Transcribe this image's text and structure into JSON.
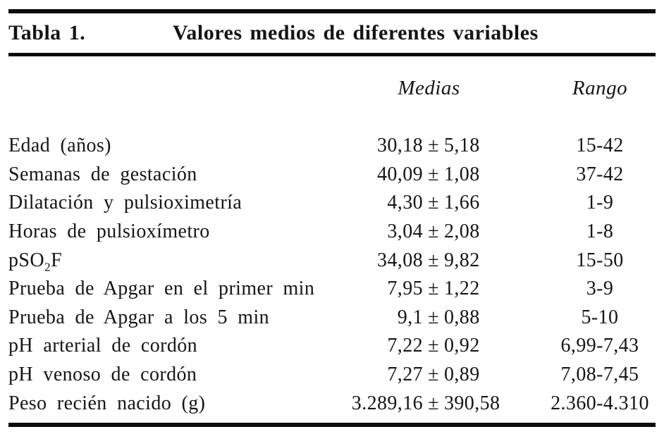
{
  "table": {
    "label": "Tabla 1.",
    "title": "Valores medios de diferentes variables",
    "columns": {
      "medias": "Medias",
      "rango": "Rango"
    },
    "rows": [
      {
        "label": "Edad (años)",
        "mean": "30,18",
        "pm": "±",
        "sd": "5,18",
        "range": "15-42"
      },
      {
        "label": "Semanas de gestación",
        "mean": "40,09",
        "pm": "±",
        "sd": "1,08",
        "range": "37-42"
      },
      {
        "label": "Dilatación y pulsioximetría",
        "mean": "4,30",
        "pm": "±",
        "sd": "1,66",
        "range": "1-9"
      },
      {
        "label": "Horas de pulsioxímetro",
        "mean": "3,04",
        "pm": "±",
        "sd": "2,08",
        "range": "1-8"
      },
      {
        "label_parts": {
          "base": "pSO",
          "sub": "2",
          "post": "F"
        },
        "mean": "34,08",
        "pm": "±",
        "sd": "9,82",
        "range": "15-50"
      },
      {
        "label": "Prueba de Apgar en el primer min",
        "mean": "7,95",
        "pm": "±",
        "sd": "1,22",
        "range": "3-9"
      },
      {
        "label": "Prueba de Apgar a los 5 min",
        "mean": "9,1",
        "pm": "±",
        "sd": "0,88",
        "range": "5-10"
      },
      {
        "label": "pH arterial de cordón",
        "mean": "7,22",
        "pm": "±",
        "sd": "0,92",
        "range": "6,99-7,43"
      },
      {
        "label": "pH venoso de cordón",
        "mean": "7,27",
        "pm": "±",
        "sd": "0,89",
        "range": "7,08-7,45"
      },
      {
        "label": "Peso recién nacido (g)",
        "mean": "3.289,16",
        "pm": "±",
        "sd": "390,58",
        "range": "2.360-4.310"
      }
    ],
    "colors": {
      "rule": "#0b0b0b",
      "text": "#151515",
      "background": "#ffffff"
    }
  }
}
